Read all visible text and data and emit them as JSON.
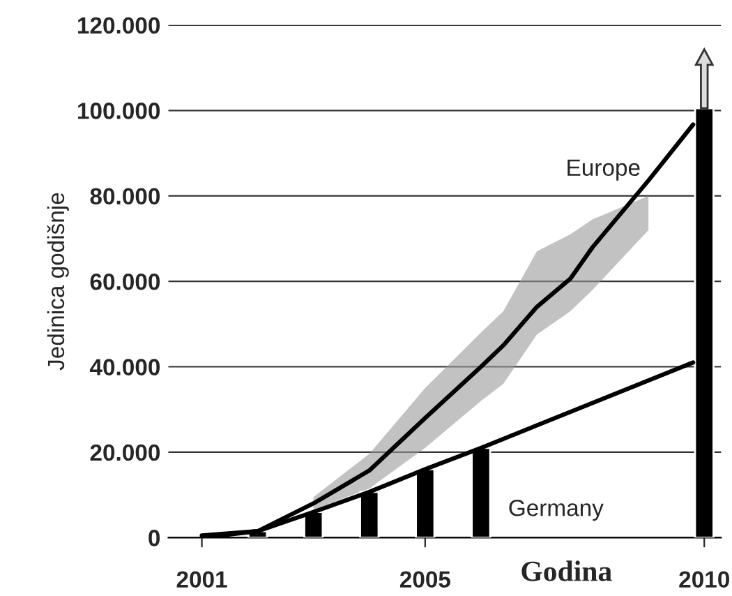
{
  "chart_data": {
    "type": "line",
    "ylabel": "Jedinica godišnje",
    "xlabel": "Godina",
    "series": [
      {
        "type": "bar",
        "color": "#000000",
        "x": [
          2002,
          2003,
          2004,
          2005,
          2006,
          2010
        ],
        "values": [
          1500,
          6000,
          10700,
          16000,
          21000,
          100500
        ]
      },
      {
        "name": "Germany",
        "color": "#000000",
        "x": [
          2001,
          2002,
          2003,
          2004,
          2005,
          2006,
          2009.8
        ],
        "values": [
          500,
          1500,
          6000,
          10700,
          16000,
          21000,
          41000
        ]
      },
      {
        "name": "Europe",
        "color": "#000000",
        "x": [
          2001,
          2002,
          2003,
          2004,
          2005,
          2006,
          2006.4,
          2007,
          2007.6,
          2008,
          2009,
          2009.8
        ],
        "values": [
          0,
          1500,
          8000,
          15700,
          28000,
          40000,
          45000,
          54000,
          60600,
          68000,
          83600,
          96700
        ],
        "lower": [
          null,
          null,
          6500,
          11500,
          21000,
          32000,
          36000,
          47500,
          53000,
          58000,
          72000,
          null
        ],
        "upper": [
          null,
          null,
          9500,
          19600,
          35000,
          48000,
          53000,
          67000,
          71000,
          74500,
          80000,
          null
        ]
      }
    ],
    "xlim": [
      2000.4,
      2010.3
    ],
    "xticks": [
      2001,
      2005,
      2010
    ],
    "ylim": [
      0,
      120000
    ],
    "yticks": [
      {
        "value": 0,
        "label": "0"
      },
      {
        "value": 20000,
        "label": "20.000"
      },
      {
        "value": 40000,
        "label": "40.000"
      },
      {
        "value": 60000,
        "label": "60.000"
      },
      {
        "value": 80000,
        "label": "80.000"
      },
      {
        "value": 100000,
        "label": "100.000"
      },
      {
        "value": 120000,
        "label": "120.000"
      }
    ],
    "grid": "y",
    "legend": false,
    "marker": "none",
    "line_style": "solid"
  }
}
